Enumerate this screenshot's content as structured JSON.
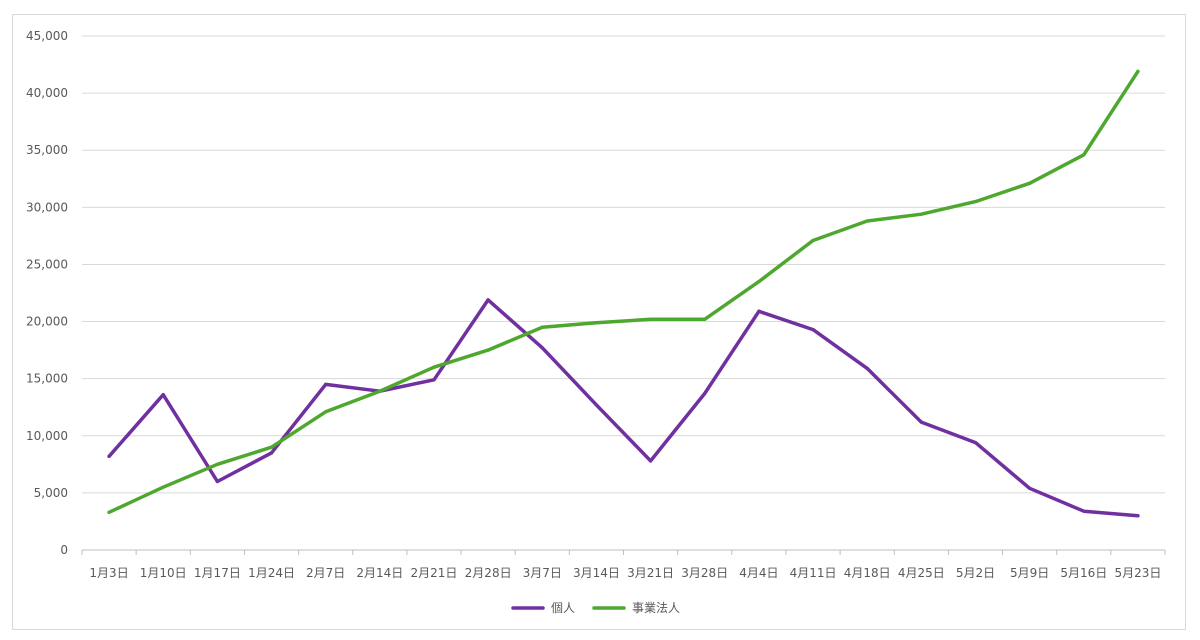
{
  "chart_data": {
    "type": "line",
    "title": "",
    "xlabel": "",
    "ylabel": "",
    "ylim": [
      0,
      45000
    ],
    "yticks": [
      "0",
      "5,000",
      "10,000",
      "15,000",
      "20,000",
      "25,000",
      "30,000",
      "35,000",
      "40,000",
      "45,000"
    ],
    "categories": [
      "1月3日",
      "1月10日",
      "1月17日",
      "1月24日",
      "2月7日",
      "2月14日",
      "2月21日",
      "2月28日",
      "3月7日",
      "3月14日",
      "3月21日",
      "3月28日",
      "4月4日",
      "4月11日",
      "4月18日",
      "4月25日",
      "5月2日",
      "5月9日",
      "5月16日",
      "5月23日"
    ],
    "grid": true,
    "legend_position": "bottom",
    "series": [
      {
        "name": "個人",
        "color": "#7030a0",
        "values": [
          8200,
          13600,
          6000,
          8500,
          14500,
          13900,
          14900,
          21900,
          17700,
          12700,
          7800,
          13700,
          20900,
          19300,
          15900,
          11200,
          9400,
          5400,
          3400,
          3000
        ]
      },
      {
        "name": "事業法人",
        "color": "#4ea72e",
        "values": [
          3300,
          5500,
          7500,
          9000,
          12100,
          13900,
          16000,
          17500,
          19500,
          19900,
          20200,
          20200,
          23500,
          27100,
          28800,
          29400,
          30500,
          32100,
          34600,
          41900
        ]
      }
    ]
  }
}
